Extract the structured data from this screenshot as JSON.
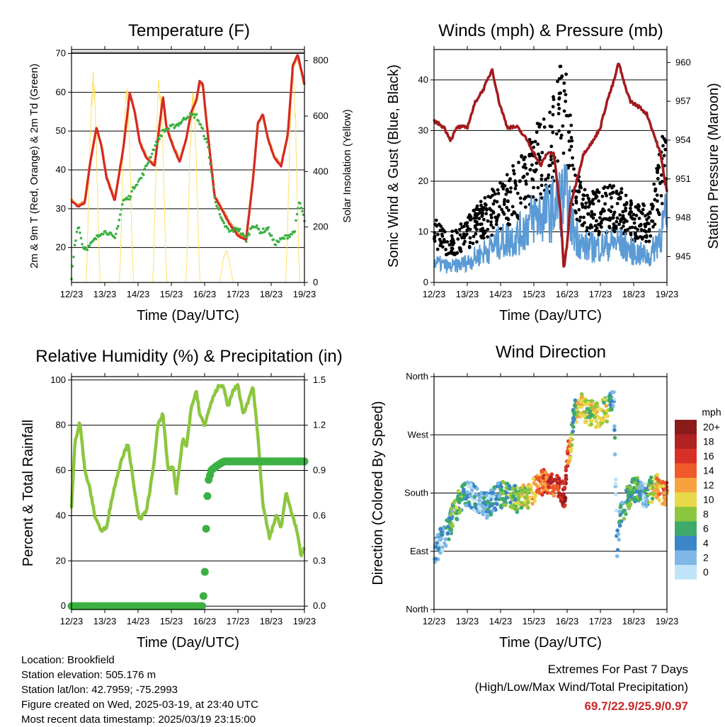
{
  "info": {
    "location": "Location: Brookfield",
    "elevation": "Station elevation: 505.176 m",
    "latlon": "Station lat/lon: 42.7959; -75.2993",
    "created": "Figure created on Wed, 2025-03-19, at 23:40 UTC",
    "recent": "Most recent data timestamp: 2025/03/19 23:15:00"
  },
  "extremes": {
    "title": "Extremes For Past 7 Days",
    "subtitle": "(High/Low/Max Wind/Total Precipitation)",
    "values": "69.7/22.9/25.9/0.97"
  },
  "colors": {
    "temp_red": "#d62728",
    "temp_orange": "#f28e2b",
    "dewpoint_green": "#3cb043",
    "solar_yellow": "#ffe066",
    "wind_blue": "#5b9bd5",
    "gust_black": "#000000",
    "pressure_maroon": "#a31a1e",
    "rh_lightgreen": "#8cc63f",
    "precip_green": "#3cb043"
  },
  "chart_data": [
    {
      "type": "line",
      "title": "Temperature (F)",
      "xlabel": "Time (Day/UTC)",
      "ylabel": "2m & 9m T (Red, Orange) & 2m Td (Green)",
      "y2label": "Solar Insolation (Yellow)",
      "x_ticks": [
        "12/23",
        "13/23",
        "14/23",
        "15/23",
        "16/23",
        "17/23",
        "18/23",
        "19/23"
      ],
      "xlim": [
        12,
        19
      ],
      "ylim": [
        11,
        71
      ],
      "y_ticks": [
        20,
        30,
        40,
        50,
        60,
        70
      ],
      "y2lim": [
        0,
        840
      ],
      "y2_ticks": [
        0,
        200,
        400,
        600,
        800
      ],
      "grid": "horizontal",
      "series": [
        {
          "name": "2m T",
          "color": "#d62728",
          "axis": "left",
          "x": [
            12.0,
            12.2,
            12.4,
            12.55,
            12.75,
            12.9,
            13.05,
            13.3,
            13.55,
            13.75,
            13.9,
            14.05,
            14.25,
            14.5,
            14.75,
            14.85,
            15.05,
            15.25,
            15.45,
            15.6,
            15.75,
            15.85,
            15.95,
            16.05,
            16.3,
            16.5,
            16.75,
            17.0,
            17.25,
            17.45,
            17.6,
            17.75,
            17.9,
            18.1,
            18.3,
            18.5,
            18.65,
            18.8,
            18.9,
            19.0
          ],
          "values": [
            32,
            30.5,
            31.5,
            41,
            51,
            46,
            38,
            32,
            45,
            60,
            55,
            47,
            43,
            41,
            59,
            51,
            46,
            42,
            48,
            55,
            58,
            63,
            62,
            53,
            33,
            30,
            26,
            23,
            22,
            37,
            52,
            54.5,
            48,
            43,
            41,
            49,
            67,
            69.7,
            66,
            62
          ]
        },
        {
          "name": "9m T",
          "color": "#f28e2b",
          "axis": "left",
          "x": [
            12.0,
            12.2,
            12.4,
            12.55,
            12.75,
            12.9,
            13.05,
            13.3,
            13.55,
            13.75,
            13.9,
            14.05,
            14.25,
            14.5,
            14.75,
            14.85,
            15.05,
            15.25,
            15.45,
            15.6,
            15.75,
            15.85,
            15.95,
            16.05,
            16.3,
            16.5,
            16.75,
            17.0,
            17.25,
            17.45,
            17.6,
            17.75,
            17.9,
            18.1,
            18.3,
            18.5,
            18.65,
            18.8,
            18.9,
            19.0
          ],
          "values": [
            32.3,
            30.8,
            31.8,
            41.2,
            50.8,
            46.2,
            38.3,
            32.3,
            45.2,
            59.6,
            55.1,
            47.2,
            43.3,
            41.3,
            58.6,
            51.2,
            46.3,
            42.3,
            48.2,
            54.8,
            57.7,
            62.6,
            61.6,
            53.2,
            33.3,
            30.3,
            26.4,
            23.4,
            22.4,
            37.2,
            51.7,
            54.2,
            48.2,
            43.3,
            41.3,
            49.2,
            66.6,
            69.2,
            65.6,
            61.7
          ]
        },
        {
          "name": "2m Td",
          "color": "#3cb043",
          "axis": "left",
          "x": [
            12.0,
            12.1,
            12.2,
            12.35,
            12.5,
            12.7,
            12.9,
            13.1,
            13.3,
            13.55,
            13.75,
            13.9,
            14.1,
            14.3,
            14.5,
            14.75,
            15.0,
            15.25,
            15.5,
            15.75,
            15.95,
            16.1,
            16.3,
            16.5,
            16.75,
            17.0,
            17.25,
            17.45,
            17.7,
            17.9,
            18.1,
            18.3,
            18.5,
            18.7,
            18.85,
            19.0
          ],
          "values": [
            12,
            21,
            26,
            20,
            20,
            22,
            24,
            24,
            22,
            32,
            33,
            36,
            38,
            42,
            46,
            50,
            51,
            52,
            54,
            54,
            50,
            46,
            33,
            27,
            24,
            25,
            22,
            26,
            24,
            25,
            21,
            22,
            23,
            24,
            32,
            27
          ]
        }
      ],
      "solar_insolation": {
        "name": "Solar Insolation",
        "color": "#ffe066",
        "axis": "right",
        "peak_times": [
          12.65,
          13.65,
          14.65,
          15.65,
          16.65,
          17.65,
          18.65
        ],
        "peaks": [
          770,
          740,
          770,
          700,
          120,
          0,
          800
        ]
      }
    },
    {
      "type": "scatter",
      "title": "Winds (mph) & Pressure (mb)",
      "xlabel": "Time (Day/UTC)",
      "ylabel": "Sonic Wind & Gust (Blue, Black)",
      "y2label": "Station Pressure (Maroon)",
      "x_ticks": [
        "12/23",
        "13/23",
        "14/23",
        "15/23",
        "16/23",
        "17/23",
        "18/23",
        "19/23"
      ],
      "xlim": [
        12,
        19
      ],
      "ylim": [
        0,
        46
      ],
      "y_ticks": [
        0,
        10,
        20,
        30,
        40
      ],
      "y2lim": [
        943.0,
        961.0
      ],
      "y2_ticks": [
        945,
        948,
        951,
        954,
        957,
        960
      ],
      "grid": "horizontal",
      "series": [
        {
          "name": "Sonic Wind",
          "color": "#5b9bd5",
          "kind": "band",
          "x": [
            12.0,
            12.5,
            13.0,
            13.5,
            14.0,
            14.5,
            15.0,
            15.5,
            15.9,
            16.0,
            16.2,
            16.5,
            17.0,
            17.5,
            18.0,
            18.5,
            19.0
          ],
          "values": [
            4,
            3,
            4,
            6,
            8,
            9,
            13,
            14,
            17,
            16,
            10,
            7,
            7,
            8,
            6,
            5,
            13
          ]
        },
        {
          "name": "Gust",
          "color": "#000000",
          "kind": "band",
          "x": [
            12.0,
            12.5,
            13.0,
            13.5,
            14.0,
            14.5,
            15.0,
            15.5,
            15.9,
            16.0,
            16.2,
            16.5,
            17.0,
            17.5,
            18.0,
            18.5,
            19.0
          ],
          "values": [
            9,
            7,
            9,
            12,
            14,
            17,
            22,
            24,
            33,
            30,
            19,
            13,
            13,
            14,
            11,
            11,
            24
          ]
        },
        {
          "name": "Station Pressure",
          "color": "#a31a1e",
          "kind": "line",
          "axis": "right",
          "x": [
            12.0,
            12.3,
            12.5,
            12.7,
            13.0,
            13.25,
            13.5,
            13.75,
            13.95,
            14.2,
            14.5,
            14.8,
            15.0,
            15.2,
            15.4,
            15.6,
            15.8,
            15.9,
            16.0,
            16.1,
            16.3,
            16.5,
            16.8,
            17.0,
            17.2,
            17.4,
            17.55,
            17.7,
            17.9,
            18.2,
            18.4,
            18.6,
            18.8,
            18.9,
            19.0
          ],
          "values": [
            955.5,
            955,
            954,
            955,
            955,
            957,
            958,
            959.5,
            957,
            955,
            955,
            954,
            953,
            952,
            953,
            953,
            948.5,
            944,
            946,
            949,
            951,
            953,
            954,
            955,
            957,
            958.5,
            960,
            958.5,
            957,
            956.5,
            956,
            954.5,
            953,
            951.5,
            950
          ]
        }
      ]
    },
    {
      "type": "line",
      "title": "Relative Humidity (%) & Precipitation (in)",
      "xlabel": "Time (Day/UTC)",
      "ylabel": "Percent & Total Rainfall",
      "x_ticks": [
        "12/23",
        "13/23",
        "14/23",
        "15/23",
        "16/23",
        "17/23",
        "18/23",
        "19/23"
      ],
      "xlim": [
        12,
        19
      ],
      "ylim": [
        -1.5,
        101.5
      ],
      "y_ticks": [
        0,
        20,
        40,
        60,
        80,
        100
      ],
      "y2lim": [
        -0.0225,
        1.5225
      ],
      "y2_ticks": [
        "0.0",
        "0.3",
        "0.6",
        "0.9",
        "1.2",
        "1.5"
      ],
      "grid": "horizontal",
      "series": [
        {
          "name": "Relative Humidity",
          "color": "#8cc63f",
          "axis": "left",
          "x": [
            12.0,
            12.1,
            12.25,
            12.4,
            12.55,
            12.7,
            12.9,
            13.05,
            13.25,
            13.5,
            13.7,
            13.9,
            14.05,
            14.25,
            14.45,
            14.6,
            14.75,
            14.9,
            15.05,
            15.15,
            15.35,
            15.45,
            15.6,
            15.75,
            15.85,
            16.0,
            16.2,
            16.4,
            16.55,
            16.7,
            16.85,
            17.0,
            17.15,
            17.3,
            17.45,
            17.6,
            17.75,
            17.95,
            18.15,
            18.3,
            18.45,
            18.6,
            18.75,
            18.9,
            19.0
          ],
          "values": [
            43,
            72,
            82,
            60,
            52,
            40,
            33,
            35,
            50,
            65,
            72,
            50,
            38,
            42,
            60,
            80,
            85,
            60,
            62,
            50,
            75,
            70,
            88,
            95,
            85,
            80,
            90,
            97,
            98,
            88,
            95,
            98,
            85,
            90,
            98,
            75,
            45,
            30,
            40,
            35,
            50,
            42,
            35,
            22,
            26
          ]
        },
        {
          "name": "Total Precipitation",
          "color": "#3cb043",
          "axis": "right",
          "x": [
            12.0,
            15.95,
            15.98,
            16.0,
            16.02,
            16.05,
            16.1,
            16.2,
            16.3,
            16.5,
            16.6,
            17.0,
            18.0,
            19.0
          ],
          "values": [
            0,
            0,
            0.12,
            0.18,
            0.35,
            0.55,
            0.82,
            0.9,
            0.92,
            0.95,
            0.96,
            0.96,
            0.96,
            0.96
          ]
        }
      ]
    },
    {
      "type": "scatter",
      "title": "Wind Direction",
      "xlabel": "Time (Day/UTC)",
      "ylabel": "Direction (Colored By Speed)",
      "x_ticks": [
        "12/23",
        "13/23",
        "14/23",
        "15/23",
        "16/23",
        "17/23",
        "18/23",
        "19/23"
      ],
      "xlim": [
        12,
        19
      ],
      "ylim": [
        0,
        360
      ],
      "y_ticks": [
        "North",
        "East",
        "South",
        "West",
        "North"
      ],
      "grid": "horizontal",
      "legend_title": "mph",
      "legend_position": "right",
      "legend_levels": [
        "20+",
        "18",
        "16",
        "14",
        "12",
        "10",
        "8",
        "6",
        "4",
        "2",
        "0"
      ],
      "legend_colors": [
        "#8b1a1a",
        "#b22222",
        "#d73027",
        "#ef5a2a",
        "#f8a13f",
        "#e8d84a",
        "#8cc63f",
        "#3daa6a",
        "#3a86c8",
        "#7fb8e6",
        "#bfe3f8"
      ],
      "series": [
        {
          "name": "Direction",
          "x": [
            12.0,
            12.2,
            12.4,
            12.6,
            12.8,
            13.0,
            13.3,
            13.6,
            13.9,
            14.2,
            14.5,
            14.8,
            15.1,
            15.4,
            15.7,
            15.95,
            16.0,
            16.1,
            16.2,
            16.35,
            16.6,
            16.9,
            17.2,
            17.4,
            17.5,
            17.6,
            17.75,
            17.9,
            18.1,
            18.3,
            18.5,
            18.7,
            18.9,
            19.0
          ],
          "values": [
            85,
            105,
            120,
            150,
            170,
            180,
            170,
            160,
            175,
            180,
            170,
            175,
            190,
            200,
            190,
            175,
            240,
            250,
            300,
            320,
            305,
            300,
            310,
            330,
            100,
            140,
            165,
            180,
            185,
            175,
            185,
            190,
            180,
            178
          ],
          "speeds": [
            3,
            4,
            5,
            7,
            8,
            4,
            3,
            4,
            5,
            7,
            9,
            11,
            14,
            16,
            17,
            18,
            16,
            13,
            6,
            12,
            10,
            11,
            10,
            4,
            3,
            5,
            7,
            8,
            6,
            3,
            8,
            12,
            14,
            15
          ]
        }
      ]
    }
  ]
}
